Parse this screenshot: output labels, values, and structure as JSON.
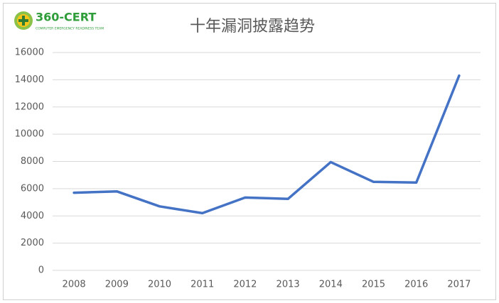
{
  "logo": {
    "name": "360-CERT",
    "tagline": "COMPUTER EMERGENCY READINESS TEAM"
  },
  "chart_data": {
    "type": "line",
    "title": "十年漏洞披露趋势",
    "categories": [
      "2008",
      "2009",
      "2010",
      "2011",
      "2012",
      "2013",
      "2014",
      "2015",
      "2016",
      "2017"
    ],
    "values": [
      5700,
      5800,
      4700,
      4200,
      5350,
      5250,
      7950,
      6500,
      6450,
      14300
    ],
    "color": "#4472c4",
    "ylim": [
      0,
      16000
    ],
    "yticks": [
      0,
      2000,
      4000,
      6000,
      8000,
      10000,
      12000,
      14000,
      16000
    ],
    "grid": true
  }
}
